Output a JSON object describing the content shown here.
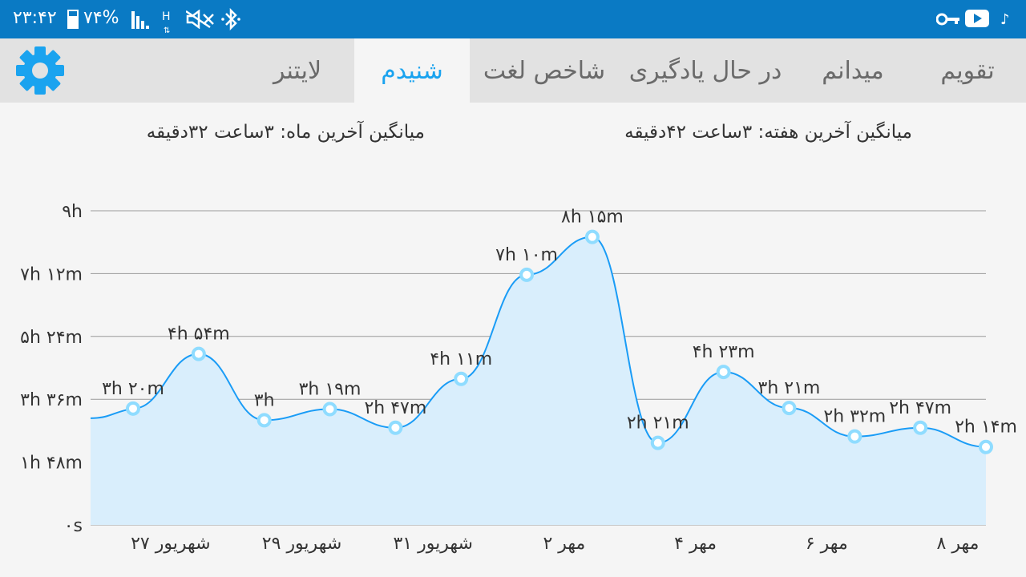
{
  "status_bar": {
    "time": "۲۳:۴۲",
    "battery": "۷۴%",
    "network": "H",
    "music_note": "♪"
  },
  "tabs": [
    {
      "label": "تقویم",
      "active": false
    },
    {
      "label": "میدانم",
      "active": false
    },
    {
      "label": "در حال یادگیری",
      "active": false
    },
    {
      "label": "شاخص لغت",
      "active": false
    },
    {
      "label": "شنیدم",
      "active": true
    },
    {
      "label": "لایتنر",
      "active": false
    }
  ],
  "averages": {
    "week": "میانگین آخرین هفته: ۳ساعت  ۴۲دقیقه",
    "month": "میانگین آخرین ماه: ۳ساعت  ۳۲دقیقه"
  },
  "colors": {
    "status_bar": "#0a7ac4",
    "accent": "#1aa3ef",
    "area_top": "#1a9cf6",
    "area_bottom": "#d9eefc"
  },
  "chart_data": {
    "type": "area",
    "y_unit": "minutes",
    "ylim": [
      0,
      540
    ],
    "y_ticks": [
      {
        "value": 0,
        "label": "۰s"
      },
      {
        "value": 108,
        "label": "۱h ۴۸m"
      },
      {
        "value": 216,
        "label": "۳h ۳۶m"
      },
      {
        "value": 324,
        "label": "۵h ۲۴m"
      },
      {
        "value": 432,
        "label": "۷h ۱۲m"
      },
      {
        "value": 540,
        "label": "۹h"
      }
    ],
    "x_ticks": [
      "۲۷ شهریور",
      "۲۹ شهریور",
      "۳۱ شهریور",
      "۲ مهر",
      "۴ مهر",
      "۶ مهر",
      "۸ مهر"
    ],
    "points": [
      {
        "date": "۲۶ شهریور",
        "value": 200,
        "label": "۳h ۲۰m"
      },
      {
        "date": "۲۷ شهریور",
        "value": 294,
        "label": "۴h ۵۴m"
      },
      {
        "date": "۲۸ شهریور",
        "value": 180,
        "label": "۳h"
      },
      {
        "date": "۲۹ شهریور",
        "value": 199,
        "label": "۳h ۱۹m"
      },
      {
        "date": "۳۰ شهریور",
        "value": 167,
        "label": "۲h ۴۷m"
      },
      {
        "date": "۳۱ شهریور",
        "value": 251,
        "label": "۴h ۱۱m"
      },
      {
        "date": "۱ مهر",
        "value": 430,
        "label": "۷h ۱۰m"
      },
      {
        "date": "۲ مهر",
        "value": 495,
        "label": "۸h ۱۵m"
      },
      {
        "date": "۳ مهر",
        "value": 141,
        "label": "۲h ۲۱m"
      },
      {
        "date": "۴ مهر",
        "value": 263,
        "label": "۴h ۲۳m"
      },
      {
        "date": "۵ مهر",
        "value": 201,
        "label": "۳h ۲۱m"
      },
      {
        "date": "۶ مهر",
        "value": 152,
        "label": "۲h ۳۲m"
      },
      {
        "date": "۷ مهر",
        "value": 167,
        "label": "۲h ۴۷m"
      },
      {
        "date": "۸ مهر",
        "value": 134,
        "label": "۲h ۱۴m"
      }
    ]
  }
}
